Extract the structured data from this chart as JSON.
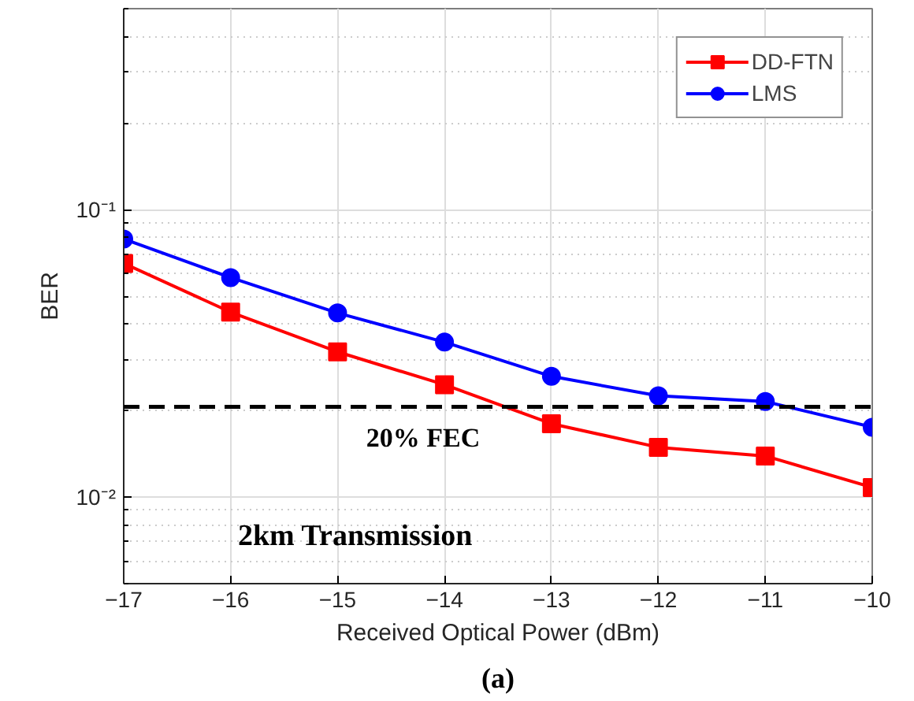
{
  "chart_data": {
    "type": "line",
    "xlabel": "Received Optical Power (dBm)",
    "ylabel": "BER",
    "x": [
      -17,
      -16,
      -15,
      -14,
      -13,
      -12,
      -11,
      -10
    ],
    "series": [
      {
        "name": "DD-FTN",
        "color": "#ff0000",
        "marker": "square",
        "values": [
          0.065,
          0.044,
          0.032,
          0.0246,
          0.018,
          0.0149,
          0.0139,
          0.0108
        ]
      },
      {
        "name": "LMS",
        "color": "#0000ff",
        "marker": "circle",
        "values": [
          0.079,
          0.058,
          0.0437,
          0.0346,
          0.0263,
          0.0225,
          0.0215,
          0.0175
        ]
      }
    ],
    "log": "y",
    "xlim": [
      -17,
      -10
    ],
    "ylim": [
      0.005,
      0.5
    ],
    "xticks": [
      -17,
      -16,
      -15,
      -14,
      -13,
      -12,
      -11,
      -10
    ],
    "yticks": [
      {
        "value": 0.01,
        "label": "10⁻²"
      },
      {
        "value": 0.1,
        "label": "10⁻¹"
      }
    ],
    "grid": true,
    "legend": "top right",
    "line_style": "solid",
    "ref_lines": [
      {
        "axis": "y",
        "value": 0.0206,
        "label": "20% FEC",
        "color": "#000000",
        "line_style": "dashed"
      }
    ],
    "annotations": [
      "2km Transmission",
      "(a)"
    ]
  }
}
